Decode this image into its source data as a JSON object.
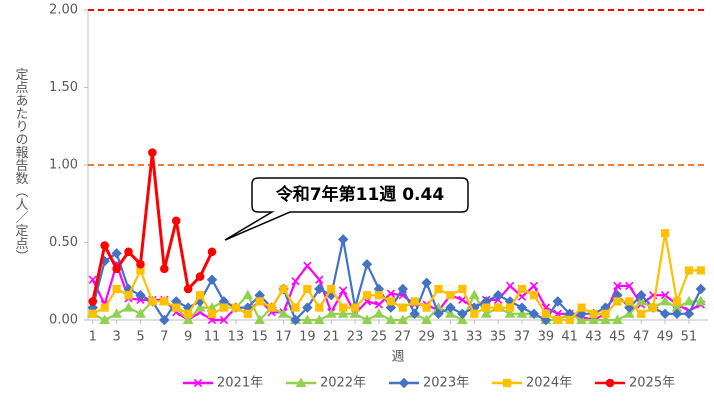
{
  "chart_data": {
    "type": "line",
    "y_label": "定点あたりの報告数（人／定点）",
    "x_label": "週",
    "annotation": "令和7年第11週 0.44",
    "x": [
      1,
      2,
      3,
      4,
      5,
      6,
      7,
      8,
      9,
      10,
      11,
      12,
      13,
      14,
      15,
      16,
      17,
      18,
      19,
      20,
      21,
      22,
      23,
      24,
      25,
      26,
      27,
      28,
      29,
      30,
      31,
      32,
      33,
      34,
      35,
      36,
      37,
      38,
      39,
      40,
      41,
      42,
      43,
      44,
      45,
      46,
      47,
      48,
      49,
      50,
      51,
      52
    ],
    "xlim": [
      0.6,
      52.6
    ],
    "xticks": [
      1,
      3,
      5,
      7,
      9,
      11,
      13,
      15,
      17,
      19,
      21,
      23,
      25,
      27,
      29,
      31,
      33,
      35,
      37,
      39,
      41,
      43,
      45,
      47,
      49,
      51
    ],
    "ylim": [
      0,
      2
    ],
    "yticks": [
      {
        "value": 0,
        "label": "0.00"
      },
      {
        "value": 0.5,
        "label": "0.50"
      },
      {
        "value": 1,
        "label": "1.00"
      },
      {
        "value": 1.5,
        "label": "1.50"
      },
      {
        "value": 2,
        "label": "2.00"
      }
    ],
    "reference_lines": [
      {
        "value": 2,
        "color": "#ff0000"
      },
      {
        "value": 1,
        "color": "#ed7d31"
      }
    ],
    "series": [
      {
        "name": "2021年",
        "color": "#ff00ff",
        "marker": "x",
        "values": [
          0.26,
          0.1,
          0.36,
          0.14,
          0.13,
          0.13,
          0.13,
          0.05,
          0.0,
          0.05,
          0.0,
          0.0,
          0.08,
          0.04,
          0.13,
          0.05,
          0.05,
          0.25,
          0.35,
          0.26,
          0.05,
          0.19,
          0.04,
          0.12,
          0.1,
          0.17,
          0.16,
          0.1,
          0.1,
          0.06,
          0.16,
          0.13,
          0.08,
          0.13,
          0.13,
          0.22,
          0.15,
          0.22,
          0.08,
          0.04,
          0.04,
          0.02,
          0.0,
          0.04,
          0.22,
          0.22,
          0.1,
          0.16,
          0.16,
          0.1,
          0.06,
          0.1
        ]
      },
      {
        "name": "2022年",
        "color": "#92d050",
        "marker": "triangle",
        "values": [
          0.04,
          0.0,
          0.04,
          0.08,
          0.04,
          0.12,
          0.12,
          0.08,
          0.0,
          0.08,
          0.08,
          0.12,
          0.08,
          0.16,
          0.0,
          0.08,
          0.04,
          0.0,
          0.0,
          0.0,
          0.04,
          0.04,
          0.04,
          0.0,
          0.04,
          0.0,
          0.0,
          0.04,
          0.0,
          0.08,
          0.04,
          0.0,
          0.16,
          0.04,
          0.08,
          0.04,
          0.04,
          0.04,
          0.0,
          0.0,
          0.04,
          0.0,
          0.0,
          0.0,
          0.0,
          0.04,
          0.12,
          0.08,
          0.12,
          0.08,
          0.12,
          0.12
        ]
      },
      {
        "name": "2023年",
        "color": "#4472c4",
        "marker": "diamond",
        "values": [
          0.08,
          0.38,
          0.43,
          0.2,
          0.16,
          0.12,
          0.0,
          0.12,
          0.08,
          0.12,
          0.26,
          0.12,
          0.08,
          0.08,
          0.16,
          0.08,
          0.2,
          0.0,
          0.08,
          0.2,
          0.16,
          0.52,
          0.08,
          0.36,
          0.2,
          0.08,
          0.2,
          0.04,
          0.24,
          0.04,
          0.08,
          0.04,
          0.08,
          0.12,
          0.16,
          0.12,
          0.08,
          0.04,
          0.0,
          0.12,
          0.04,
          0.04,
          0.04,
          0.08,
          0.16,
          0.08,
          0.16,
          0.08,
          0.04,
          0.04,
          0.04,
          0.2
        ]
      },
      {
        "name": "2024年",
        "color": "#ffc000",
        "marker": "square",
        "values": [
          0.04,
          0.08,
          0.2,
          0.16,
          0.32,
          0.12,
          0.12,
          0.08,
          0.04,
          0.16,
          0.04,
          0.08,
          0.08,
          0.04,
          0.12,
          0.08,
          0.2,
          0.08,
          0.2,
          0.08,
          0.2,
          0.08,
          0.08,
          0.16,
          0.16,
          0.12,
          0.08,
          0.12,
          0.08,
          0.2,
          0.16,
          0.2,
          0.04,
          0.08,
          0.08,
          0.08,
          0.2,
          0.16,
          0.04,
          0.0,
          0.0,
          0.08,
          0.04,
          0.04,
          0.12,
          0.12,
          0.04,
          0.08,
          0.56,
          0.12,
          0.32,
          0.32
        ]
      },
      {
        "name": "2025年",
        "color": "#ff0000",
        "marker": "circle",
        "values": [
          0.12,
          0.48,
          0.33,
          0.44,
          0.36,
          1.08,
          0.33,
          0.64,
          0.2,
          0.28,
          0.44,
          null,
          null,
          null,
          null,
          null,
          null,
          null,
          null,
          null,
          null,
          null,
          null,
          null,
          null,
          null,
          null,
          null,
          null,
          null,
          null,
          null,
          null,
          null,
          null,
          null,
          null,
          null,
          null,
          null,
          null,
          null,
          null,
          null,
          null,
          null,
          null,
          null,
          null,
          null,
          null,
          null
        ]
      }
    ]
  }
}
